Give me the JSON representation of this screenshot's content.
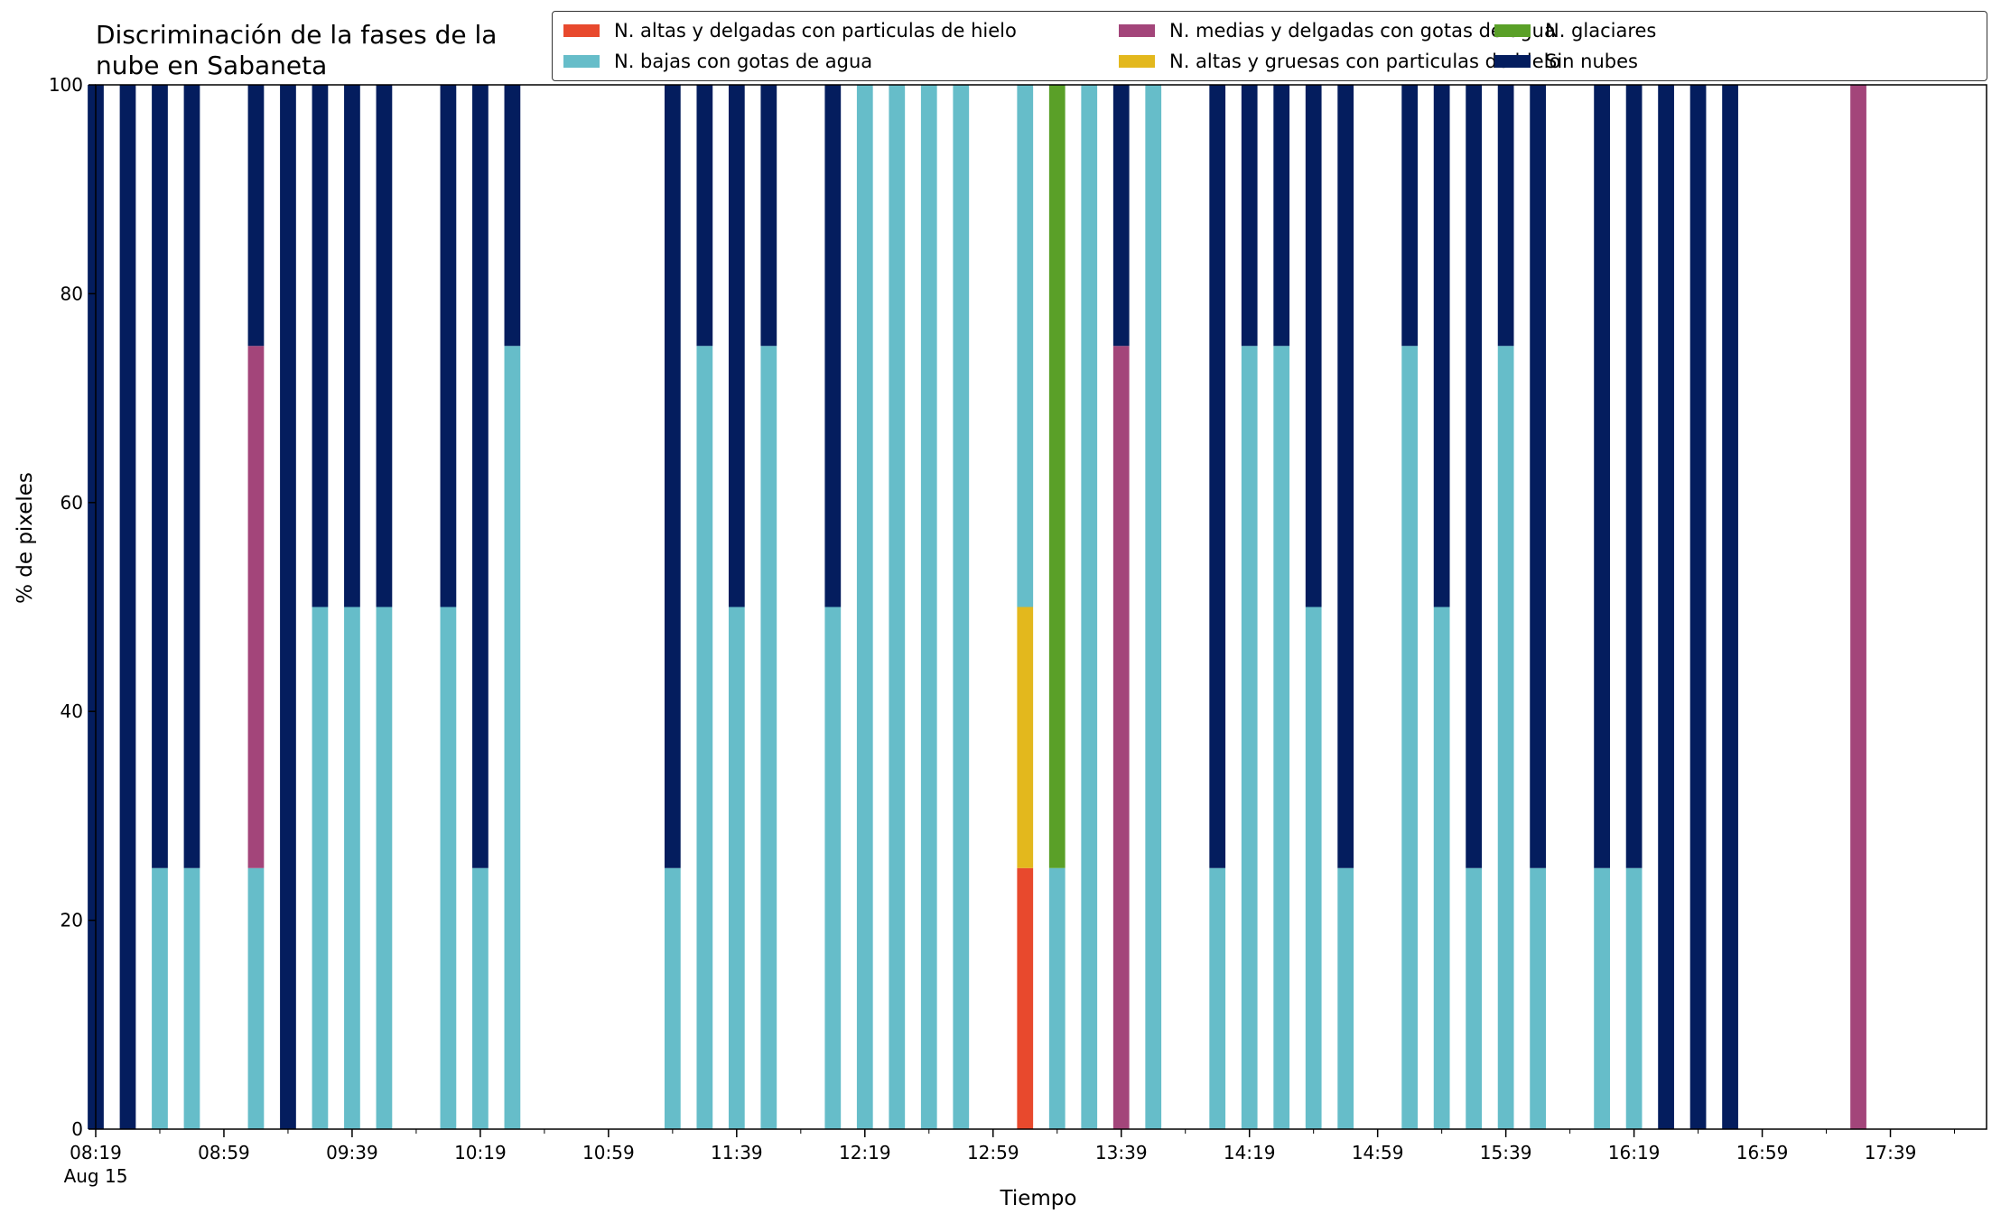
{
  "chart_data": {
    "type": "bar",
    "stacked": true,
    "title_lines": [
      "Discriminación de la fases de la",
      "nube en Sabaneta"
    ],
    "xlabel": "Tiempo",
    "ylabel": "% de pixeles",
    "ylim": [
      0,
      100
    ],
    "yticks": [
      0,
      20,
      40,
      60,
      80,
      100
    ],
    "x_tick_labels": [
      "08:19",
      "08:59",
      "09:39",
      "10:19",
      "10:59",
      "11:39",
      "12:19",
      "12:59",
      "13:39",
      "14:19",
      "14:59",
      "15:39",
      "16:19",
      "16:59",
      "17:39"
    ],
    "x_date_label": "Aug 15",
    "bar_interval_minutes": 10,
    "time_start": "08:19",
    "time_end": "18:09",
    "legend_position": "top-right",
    "series": [
      {
        "name": "N. altas y delgadas con particulas de hielo",
        "color": "#e8492d"
      },
      {
        "name": "N. altas y gruesas con particulas de hielo",
        "color": "#e3b81d"
      },
      {
        "name": "N. bajas con gotas de agua",
        "color": "#66bdc9"
      },
      {
        "name": "N. glaciares",
        "color": "#5aa028"
      },
      {
        "name": "N. medias y delgadas con gotas de agua",
        "color": "#a3457a"
      },
      {
        "name": "Sin nubes",
        "color": "#041d5e"
      }
    ],
    "legend_order": [
      0,
      2,
      4,
      1,
      3,
      5
    ],
    "bars": [
      {
        "time": "08:19",
        "segments": [
          0,
          0,
          0,
          0,
          0,
          100
        ]
      },
      {
        "time": "08:29",
        "segments": [
          0,
          0,
          0,
          0,
          0,
          100
        ]
      },
      {
        "time": "08:39",
        "segments": [
          0,
          0,
          25,
          0,
          0,
          75
        ]
      },
      {
        "time": "08:49",
        "segments": [
          0,
          0,
          25,
          0,
          0,
          75
        ]
      },
      {
        "time": "09:09",
        "segments": [
          0,
          0,
          25,
          0,
          50,
          25
        ]
      },
      {
        "time": "09:19",
        "segments": [
          0,
          0,
          0,
          0,
          0,
          100
        ]
      },
      {
        "time": "09:29",
        "segments": [
          0,
          0,
          50,
          0,
          0,
          50
        ]
      },
      {
        "time": "09:39",
        "segments": [
          0,
          0,
          50,
          0,
          0,
          50
        ]
      },
      {
        "time": "09:49",
        "segments": [
          0,
          0,
          50,
          0,
          0,
          50
        ]
      },
      {
        "time": "10:09",
        "segments": [
          0,
          0,
          50,
          0,
          0,
          50
        ]
      },
      {
        "time": "10:19",
        "segments": [
          0,
          0,
          25,
          0,
          0,
          75
        ]
      },
      {
        "time": "10:29",
        "segments": [
          0,
          0,
          75,
          0,
          0,
          25
        ]
      },
      {
        "time": "11:19",
        "segments": [
          0,
          0,
          25,
          0,
          0,
          75
        ]
      },
      {
        "time": "11:29",
        "segments": [
          0,
          0,
          75,
          0,
          0,
          25
        ]
      },
      {
        "time": "11:39",
        "segments": [
          0,
          0,
          50,
          0,
          0,
          50
        ]
      },
      {
        "time": "11:49",
        "segments": [
          0,
          0,
          75,
          0,
          0,
          25
        ]
      },
      {
        "time": "12:09",
        "segments": [
          0,
          0,
          50,
          0,
          0,
          50
        ]
      },
      {
        "time": "12:19",
        "segments": [
          0,
          0,
          100,
          0,
          0,
          0
        ]
      },
      {
        "time": "12:29",
        "segments": [
          0,
          0,
          100,
          0,
          0,
          0
        ]
      },
      {
        "time": "12:39",
        "segments": [
          0,
          0,
          100,
          0,
          0,
          0
        ]
      },
      {
        "time": "12:49",
        "segments": [
          0,
          0,
          100,
          0,
          0,
          0
        ]
      },
      {
        "time": "13:09",
        "segments": [
          25,
          25,
          50,
          0,
          0,
          0
        ]
      },
      {
        "time": "13:19",
        "segments": [
          0,
          0,
          25,
          75,
          0,
          0
        ]
      },
      {
        "time": "13:29",
        "segments": [
          0,
          0,
          100,
          0,
          0,
          0
        ]
      },
      {
        "time": "13:39",
        "segments": [
          0,
          0,
          0,
          0,
          75,
          25
        ]
      },
      {
        "time": "13:49",
        "segments": [
          0,
          0,
          100,
          0,
          0,
          0
        ]
      },
      {
        "time": "14:09",
        "segments": [
          0,
          0,
          25,
          0,
          0,
          75
        ]
      },
      {
        "time": "14:19",
        "segments": [
          0,
          0,
          75,
          0,
          0,
          25
        ]
      },
      {
        "time": "14:29",
        "segments": [
          0,
          0,
          75,
          0,
          0,
          25
        ]
      },
      {
        "time": "14:39",
        "segments": [
          0,
          0,
          50,
          0,
          0,
          50
        ]
      },
      {
        "time": "14:49",
        "segments": [
          0,
          0,
          25,
          0,
          0,
          75
        ]
      },
      {
        "time": "15:09",
        "segments": [
          0,
          0,
          75,
          0,
          0,
          25
        ]
      },
      {
        "time": "15:19",
        "segments": [
          0,
          0,
          50,
          0,
          0,
          50
        ]
      },
      {
        "time": "15:29",
        "segments": [
          0,
          0,
          25,
          0,
          0,
          75
        ]
      },
      {
        "time": "15:39",
        "segments": [
          0,
          0,
          75,
          0,
          0,
          25
        ]
      },
      {
        "time": "15:49",
        "segments": [
          0,
          0,
          25,
          0,
          0,
          75
        ]
      },
      {
        "time": "16:09",
        "segments": [
          0,
          0,
          25,
          0,
          0,
          75
        ]
      },
      {
        "time": "16:19",
        "segments": [
          0,
          0,
          25,
          0,
          0,
          75
        ]
      },
      {
        "time": "16:29",
        "segments": [
          0,
          0,
          0,
          0,
          0,
          100
        ]
      },
      {
        "time": "16:39",
        "segments": [
          0,
          0,
          0,
          0,
          0,
          100
        ]
      },
      {
        "time": "16:49",
        "segments": [
          0,
          0,
          0,
          0,
          0,
          100
        ]
      },
      {
        "time": "17:29",
        "segments": [
          0,
          0,
          0,
          0,
          100,
          0
        ]
      }
    ]
  }
}
